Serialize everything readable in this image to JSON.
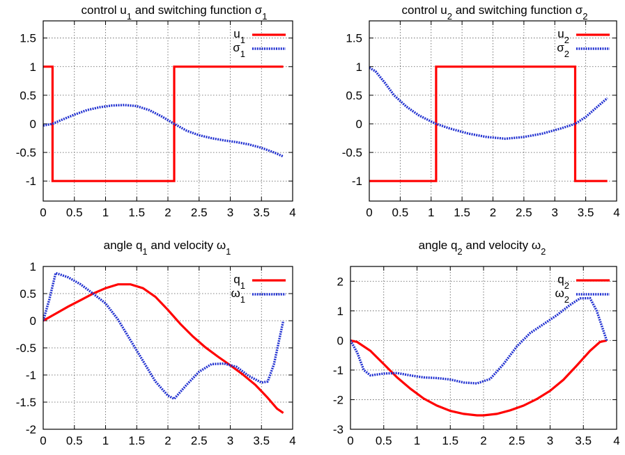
{
  "chart_data": [
    {
      "type": "line",
      "title": [
        "control ",
        "u",
        "1",
        " and switching function ",
        "σ",
        "1"
      ],
      "xlim": [
        0,
        4
      ],
      "ylim": [
        -1.35,
        1.8
      ],
      "xticks": [
        "0",
        "0.5",
        "1",
        "1.5",
        "2",
        "2.5",
        "3",
        "3.5",
        "4"
      ],
      "yticks": [
        "-1",
        "-0.5",
        "0",
        "0.5",
        "1",
        "1.5"
      ],
      "ytick_values": [
        -1,
        -0.5,
        0,
        0.5,
        1,
        1.5
      ],
      "grid": true,
      "legend": "top-right",
      "series": [
        {
          "name": [
            "u",
            "1"
          ],
          "style": "solid",
          "color": "#ff0000",
          "x": [
            0,
            0.15,
            0.15,
            2.1,
            2.1,
            3.85
          ],
          "y": [
            1,
            1,
            -1,
            -1,
            1,
            1
          ]
        },
        {
          "name": [
            "σ",
            "1"
          ],
          "style": "dotted",
          "color": "#1f2fd0",
          "x": [
            0,
            0.15,
            0.3,
            0.5,
            0.7,
            0.9,
            1.1,
            1.3,
            1.5,
            1.7,
            1.9,
            2.1,
            2.3,
            2.5,
            2.7,
            2.9,
            3.1,
            3.3,
            3.5,
            3.7,
            3.85
          ],
          "y": [
            -0.03,
            0.0,
            0.07,
            0.16,
            0.24,
            0.29,
            0.32,
            0.33,
            0.31,
            0.24,
            0.13,
            0.0,
            -0.12,
            -0.2,
            -0.25,
            -0.29,
            -0.32,
            -0.36,
            -0.42,
            -0.5,
            -0.57
          ]
        }
      ]
    },
    {
      "type": "line",
      "title": [
        "control ",
        "u",
        "2",
        " and switching function ",
        "σ",
        "2"
      ],
      "xlim": [
        0,
        4
      ],
      "ylim": [
        -1.35,
        1.8
      ],
      "xticks": [
        "0",
        "0.5",
        "1",
        "1.5",
        "2",
        "2.5",
        "3",
        "3.5",
        "4"
      ],
      "yticks": [
        "-1",
        "-0.5",
        "0",
        "0.5",
        "1",
        "1.5"
      ],
      "ytick_values": [
        -1,
        -0.5,
        0,
        0.5,
        1,
        1.5
      ],
      "grid": true,
      "legend": "top-right",
      "series": [
        {
          "name": [
            "u",
            "2"
          ],
          "style": "solid",
          "color": "#ff0000",
          "x": [
            0,
            1.08,
            1.08,
            3.33,
            3.33,
            3.85
          ],
          "y": [
            -1,
            -1,
            1,
            1,
            -1,
            -1
          ]
        },
        {
          "name": [
            "σ",
            "2"
          ],
          "style": "dotted",
          "color": "#1f2fd0",
          "x": [
            0,
            0.1,
            0.25,
            0.4,
            0.6,
            0.8,
            1.0,
            1.08,
            1.3,
            1.6,
            1.9,
            2.2,
            2.5,
            2.8,
            3.1,
            3.33,
            3.5,
            3.7,
            3.85
          ],
          "y": [
            0.98,
            0.92,
            0.72,
            0.5,
            0.3,
            0.15,
            0.04,
            0.0,
            -0.08,
            -0.17,
            -0.23,
            -0.26,
            -0.23,
            -0.17,
            -0.08,
            0.0,
            0.12,
            0.31,
            0.45
          ]
        }
      ]
    },
    {
      "type": "line",
      "title": [
        "angle ",
        "q",
        "1",
        " and velocity ",
        "ω",
        "1"
      ],
      "xlim": [
        0,
        4
      ],
      "ylim": [
        -2,
        1
      ],
      "xticks": [
        "0",
        "0.5",
        "1",
        "1.5",
        "2",
        "2.5",
        "3",
        "3.5",
        "4"
      ],
      "yticks": [
        "-2",
        "-1.5",
        "-1",
        "-0.5",
        "0",
        "0.5",
        "1"
      ],
      "ytick_values": [
        -2,
        -1.5,
        -1,
        -0.5,
        0,
        0.5,
        1
      ],
      "grid": true,
      "legend": "top-right",
      "series": [
        {
          "name": [
            "q",
            "1"
          ],
          "style": "solid",
          "color": "#ff0000",
          "x": [
            0,
            0.2,
            0.4,
            0.6,
            0.8,
            1.0,
            1.2,
            1.4,
            1.6,
            1.8,
            2.0,
            2.2,
            2.4,
            2.6,
            2.8,
            3.0,
            3.2,
            3.4,
            3.6,
            3.75,
            3.85
          ],
          "y": [
            0,
            0.13,
            0.26,
            0.38,
            0.5,
            0.6,
            0.67,
            0.67,
            0.6,
            0.44,
            0.2,
            -0.06,
            -0.29,
            -0.49,
            -0.66,
            -0.82,
            -0.99,
            -1.18,
            -1.42,
            -1.62,
            -1.7
          ]
        },
        {
          "name": [
            "ω",
            "1"
          ],
          "style": "dotted",
          "color": "#1f2fd0",
          "x": [
            0,
            0.1,
            0.2,
            0.4,
            0.6,
            0.8,
            1.0,
            1.2,
            1.4,
            1.6,
            1.8,
            2.0,
            2.1,
            2.3,
            2.5,
            2.7,
            2.9,
            3.1,
            3.3,
            3.5,
            3.6,
            3.7,
            3.85
          ],
          "y": [
            0,
            0.4,
            0.88,
            0.8,
            0.67,
            0.5,
            0.32,
            0.02,
            -0.36,
            -0.74,
            -1.12,
            -1.38,
            -1.44,
            -1.18,
            -0.94,
            -0.8,
            -0.79,
            -0.85,
            -1.02,
            -1.14,
            -1.12,
            -0.8,
            0
          ]
        }
      ]
    },
    {
      "type": "line",
      "title": [
        "angle ",
        "q",
        "2",
        " and velocity ",
        "ω",
        "2"
      ],
      "xlim": [
        0,
        4
      ],
      "ylim": [
        -3,
        2.5
      ],
      "xticks": [
        "0",
        "0.5",
        "1",
        "1.5",
        "2",
        "2.5",
        "3",
        "3.5",
        "4"
      ],
      "yticks": [
        "-3",
        "-2",
        "-1",
        "0",
        "1",
        "2"
      ],
      "ytick_values": [
        -3,
        -2,
        -1,
        0,
        1,
        2
      ],
      "grid": true,
      "legend": "top-right",
      "series": [
        {
          "name": [
            "q",
            "2"
          ],
          "style": "solid",
          "color": "#ff0000",
          "x": [
            0,
            0.1,
            0.3,
            0.5,
            0.7,
            0.9,
            1.1,
            1.3,
            1.5,
            1.7,
            1.9,
            2.0,
            2.2,
            2.4,
            2.6,
            2.8,
            3.0,
            3.2,
            3.4,
            3.6,
            3.75,
            3.85
          ],
          "y": [
            0,
            -0.05,
            -0.35,
            -0.8,
            -1.25,
            -1.63,
            -1.96,
            -2.2,
            -2.38,
            -2.48,
            -2.53,
            -2.53,
            -2.48,
            -2.36,
            -2.2,
            -1.98,
            -1.7,
            -1.33,
            -0.85,
            -0.35,
            -0.05,
            0
          ]
        },
        {
          "name": [
            "ω",
            "2"
          ],
          "style": "dotted",
          "color": "#1f2fd0",
          "x": [
            0,
            0.1,
            0.2,
            0.3,
            0.5,
            0.7,
            0.9,
            1.1,
            1.3,
            1.5,
            1.7,
            1.9,
            2.1,
            2.3,
            2.5,
            2.7,
            2.9,
            3.1,
            3.3,
            3.45,
            3.6,
            3.7,
            3.85
          ],
          "y": [
            0,
            -0.4,
            -1.0,
            -1.18,
            -1.12,
            -1.1,
            -1.18,
            -1.25,
            -1.27,
            -1.32,
            -1.42,
            -1.45,
            -1.3,
            -0.8,
            -0.2,
            0.25,
            0.55,
            0.85,
            1.2,
            1.42,
            1.43,
            1.0,
            0
          ]
        }
      ]
    }
  ]
}
